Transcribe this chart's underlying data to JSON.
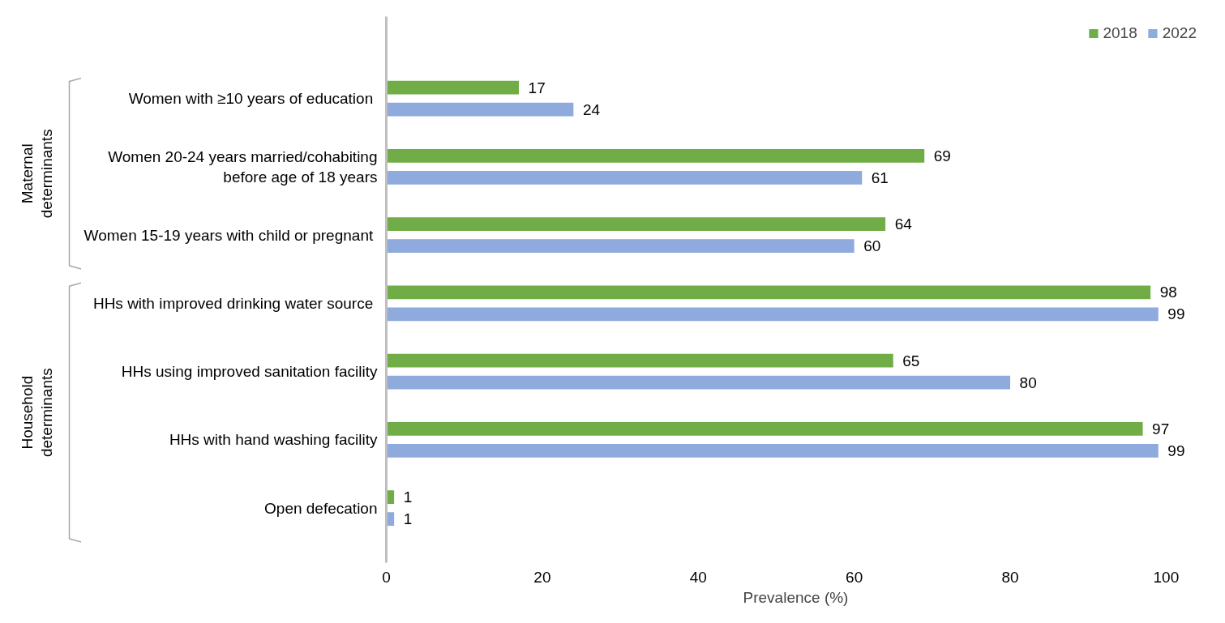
{
  "chart_data": {
    "type": "bar",
    "orientation": "horizontal",
    "xlabel": "Prevalence (%)",
    "categories": [
      "Women with ≥10 years  of education",
      "Women 20-24 years married/cohabiting before age of 18 years",
      "Women  15-19 years with child or pregnant",
      "HHs with improved drinking  water source",
      "HHs using improved sanitation facility",
      "HHs with hand washing facility",
      "Open defecation"
    ],
    "series": [
      {
        "name": "2018",
        "color": "#70ad47",
        "values": [
          17,
          69,
          64,
          98,
          65,
          97,
          1
        ]
      },
      {
        "name": "2022",
        "color": "#8faadc",
        "values": [
          24,
          61,
          60,
          99,
          80,
          99,
          1
        ]
      }
    ],
    "xlim": [
      0,
      100
    ],
    "xticks": [
      0,
      20,
      40,
      60,
      80,
      100
    ],
    "grid": false,
    "legend": "top right",
    "data_labels": true,
    "annotations": [
      "Maternal determinants",
      "Household determinants"
    ]
  }
}
